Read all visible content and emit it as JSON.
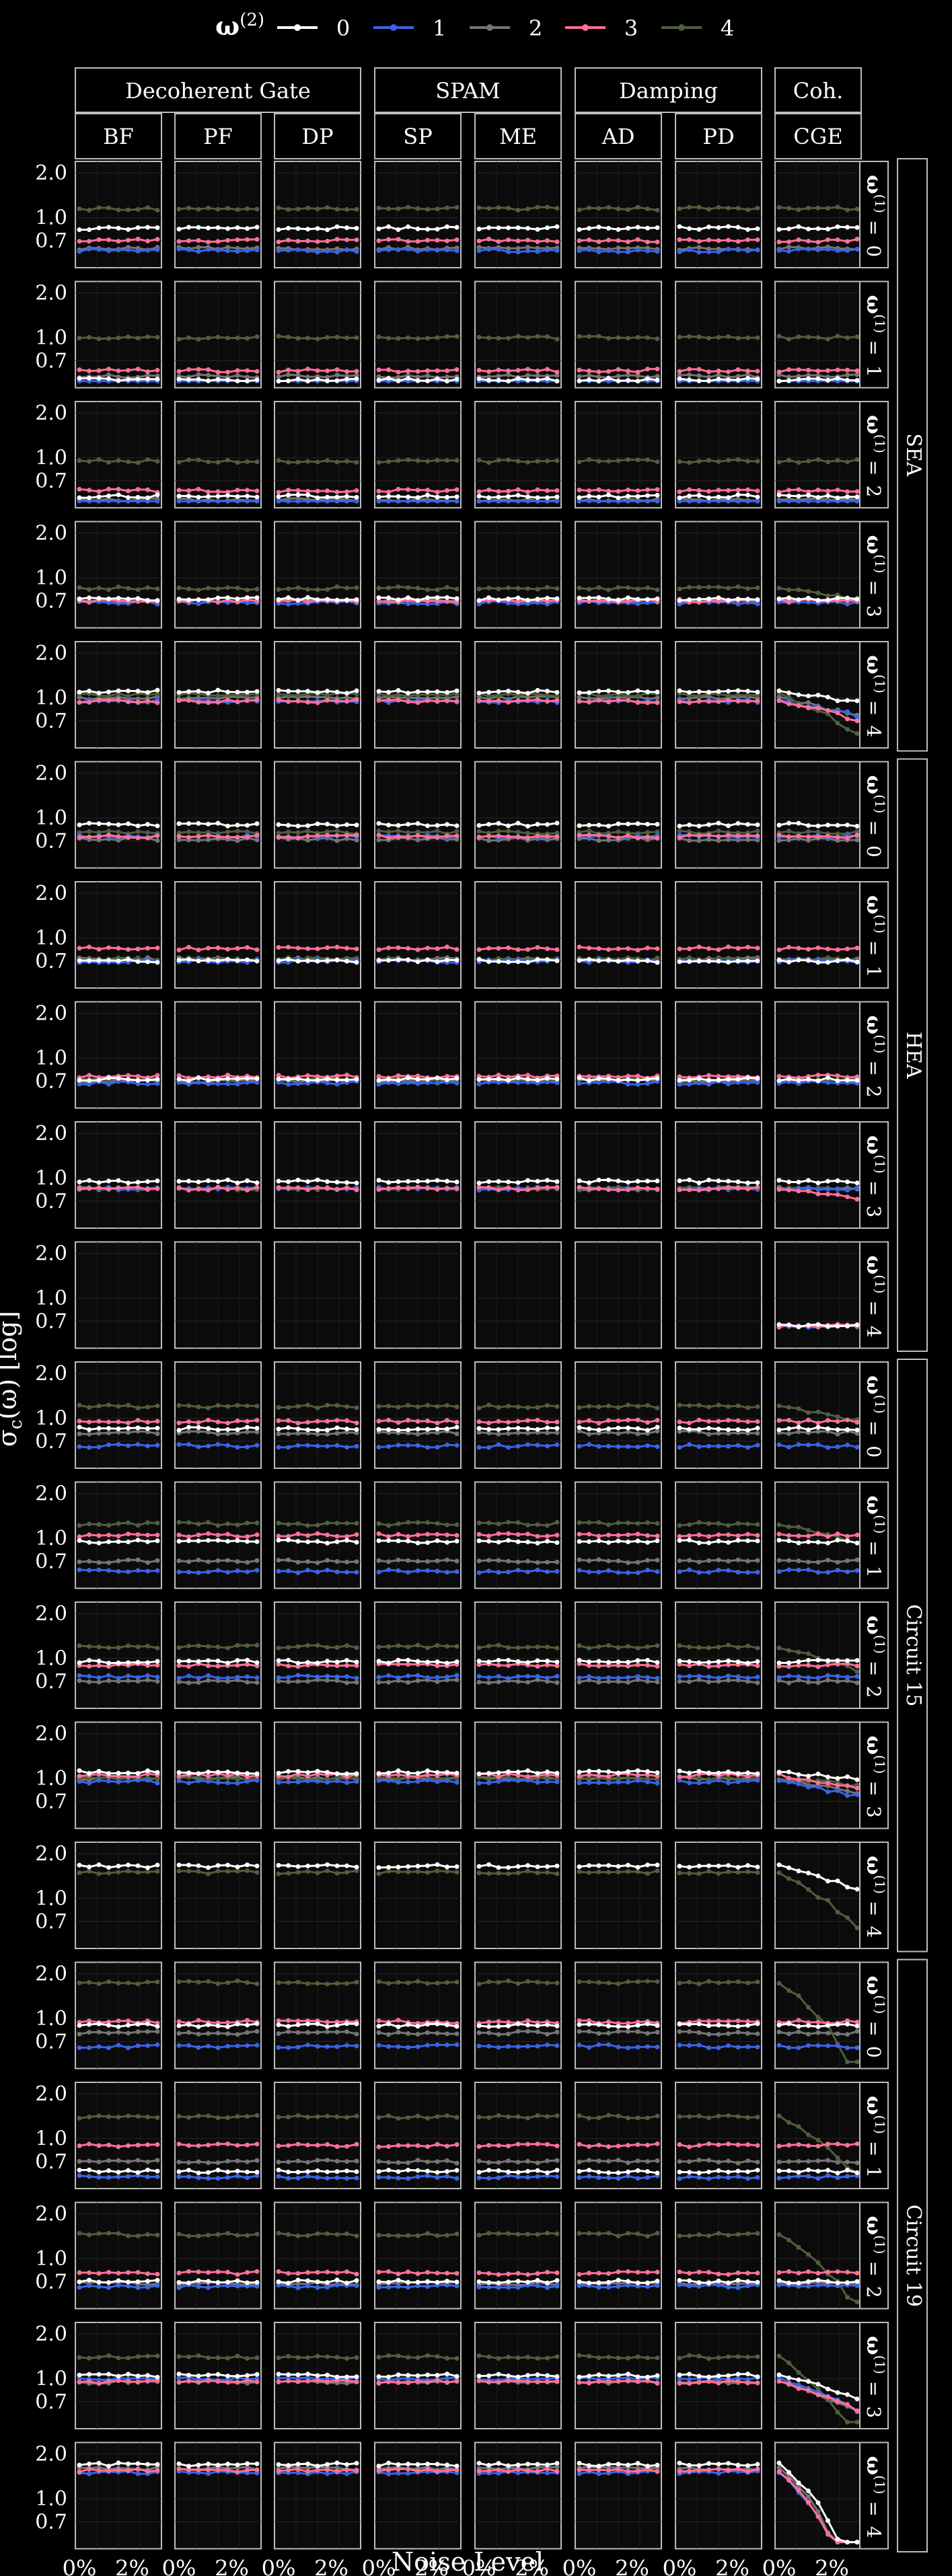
{
  "legend": {
    "title_main": "ω",
    "title_sup": "(2)",
    "entries": [
      {
        "label": "0",
        "color": "#ffffff"
      },
      {
        "label": "1",
        "color": "#3a64e6"
      },
      {
        "label": "2",
        "color": "#757575"
      },
      {
        "label": "3",
        "color": "#ff7096"
      },
      {
        "label": "4",
        "color": "#4f5e3c"
      }
    ]
  },
  "axes": {
    "xlabel": "Noise Level",
    "ylabel_main": "σ",
    "ylabel_sub": "c",
    "ylabel_rest": "(ω) [log]",
    "yticks_standard": [
      "2.0",
      "1.0",
      "0.7"
    ],
    "yticks_alt": [
      "2.0",
      "1.0",
      "0.7"
    ],
    "xticks": [
      "0%",
      "2%"
    ]
  },
  "column_groups": [
    {
      "label": "Decoherent Gate",
      "cols": [
        "BF",
        "PF",
        "DP"
      ]
    },
    {
      "label": "SPAM",
      "cols": [
        "SP",
        "ME"
      ]
    },
    {
      "label": "Damping",
      "cols": [
        "AD",
        "PD"
      ]
    },
    {
      "label": "Coh.",
      "cols": [
        "CGE"
      ]
    }
  ],
  "row_groups": [
    {
      "label": "SEA"
    },
    {
      "label": "HEA"
    },
    {
      "label": "Circuit 15"
    },
    {
      "label": "Circuit 19"
    }
  ],
  "row_strip": {
    "main": "ω",
    "sup": "(1)",
    "eq": "=",
    "values": [
      "0",
      "1",
      "2",
      "3",
      "4"
    ]
  },
  "chart_data": {
    "type": "line",
    "y_scale": "log",
    "ylim": [
      0.5,
      2.2
    ],
    "xlim": [
      0,
      3.2
    ],
    "x_unit": "%",
    "grid": true,
    "legend_position": "top",
    "n_points_per_series": 9,
    "series_colors": [
      "#ffffff",
      "#3a64e6",
      "#757575",
      "#ff7096",
      "#4f5e3c"
    ],
    "rows": [
      {
        "group": "SEA",
        "omega1": "0",
        "base": [
          0.85,
          0.6,
          0.62,
          0.7,
          1.15
        ],
        "cge_trend": [
          0,
          0,
          0,
          0,
          0
        ]
      },
      {
        "group": "SEA",
        "omega1": "1",
        "base": [
          0.52,
          0.5,
          0.55,
          0.6,
          1.0
        ],
        "cge_trend": [
          0,
          0,
          0,
          0,
          0
        ]
      },
      {
        "group": "SEA",
        "omega1": "2",
        "base": [
          0.55,
          0.5,
          0.52,
          0.6,
          0.95
        ],
        "cge_trend": [
          0,
          0,
          0,
          0,
          0
        ]
      },
      {
        "group": "SEA",
        "omega1": "3",
        "base": [
          0.72,
          0.68,
          0.7,
          0.7,
          0.85
        ],
        "cge_trend": [
          0,
          0,
          0,
          0,
          -0.15
        ]
      },
      {
        "group": "SEA",
        "omega1": "4",
        "base": [
          1.1,
          0.95,
          1.0,
          0.95,
          1.05
        ],
        "cge_trend": [
          -0.15,
          -0.2,
          -0.25,
          -0.25,
          -0.45
        ]
      },
      {
        "group": "HEA",
        "omega1": "0",
        "base": [
          0.9,
          0.75,
          0.72,
          0.75,
          0.8
        ],
        "cge_trend": [
          0,
          0,
          0,
          0,
          0
        ]
      },
      {
        "group": "HEA",
        "omega1": "1",
        "base": [
          0.7,
          0.7,
          0.72,
          0.85,
          0.72
        ],
        "cge_trend": [
          0,
          0,
          0,
          0,
          0
        ]
      },
      {
        "group": "HEA",
        "omega1": "2",
        "base": [
          0.72,
          0.68,
          0.7,
          0.75,
          0.72
        ],
        "cge_trend": [
          0,
          0,
          0,
          0,
          0
        ]
      },
      {
        "group": "HEA",
        "omega1": "3",
        "base": [
          0.95,
          0.85,
          0.85,
          0.85,
          0.85
        ],
        "cge_trend": [
          0,
          0,
          0,
          -0.15,
          0
        ]
      },
      {
        "group": "HEA",
        "omega1": "4",
        "base": [
          0,
          0,
          0,
          0,
          0
        ],
        "cge_only": [
          0.65,
          0.65,
          0.65,
          0.65,
          0.65
        ],
        "cge_trend": [
          0,
          0,
          0,
          0,
          0
        ]
      },
      {
        "group": "Circuit 15",
        "omega1": "0",
        "base": [
          0.85,
          0.65,
          0.8,
          0.95,
          1.2
        ],
        "cge_trend": [
          0,
          0,
          0,
          0,
          -0.2
        ]
      },
      {
        "group": "Circuit 15",
        "omega1": "1",
        "base": [
          0.95,
          0.6,
          0.7,
          1.05,
          1.25
        ],
        "cge_trend": [
          0,
          0,
          0,
          0,
          -0.25
        ]
      },
      {
        "group": "Circuit 15",
        "omega1": "2",
        "base": [
          0.95,
          0.75,
          0.7,
          0.9,
          1.2
        ],
        "cge_trend": [
          0,
          0,
          0,
          0,
          -0.3
        ]
      },
      {
        "group": "Circuit 15",
        "omega1": "3",
        "base": [
          1.1,
          0.95,
          1.0,
          1.05,
          1.0
        ],
        "cge_trend": [
          -0.1,
          -0.2,
          -0.2,
          -0.2,
          -0.1
        ]
      },
      {
        "group": "Circuit 15",
        "omega1": "4",
        "base": [
          1.65,
          0,
          0,
          0,
          1.5
        ],
        "cge_trend": [
          -0.3,
          0,
          0,
          0,
          -0.6
        ]
      },
      {
        "group": "Circuit 19",
        "omega1": "0",
        "base": [
          0.9,
          0.65,
          0.8,
          0.95,
          1.75
        ],
        "cge_trend": [
          0,
          0,
          0,
          0,
          -0.8
        ]
      },
      {
        "group": "Circuit 19",
        "omega1": "1",
        "base": [
          0.6,
          0.55,
          0.7,
          0.9,
          1.4
        ],
        "cge_trend": [
          0,
          0,
          0,
          0,
          -0.6
        ]
      },
      {
        "group": "Circuit 19",
        "omega1": "2",
        "base": [
          0.7,
          0.65,
          0.68,
          0.8,
          1.45
        ],
        "cge_trend": [
          0,
          0,
          0,
          0,
          -0.7
        ]
      },
      {
        "group": "Circuit 19",
        "omega1": "3",
        "base": [
          1.05,
          1.0,
          0.95,
          0.95,
          1.4
        ],
        "cge_trend": [
          -0.3,
          -0.4,
          -0.35,
          -0.35,
          -0.8
        ]
      },
      {
        "group": "Circuit 19",
        "omega1": "4",
        "base": [
          1.7,
          1.5,
          1.6,
          1.55,
          0
        ],
        "cge_trend": [
          -0.9,
          -1.0,
          -1.0,
          -1.0,
          0
        ]
      }
    ]
  }
}
